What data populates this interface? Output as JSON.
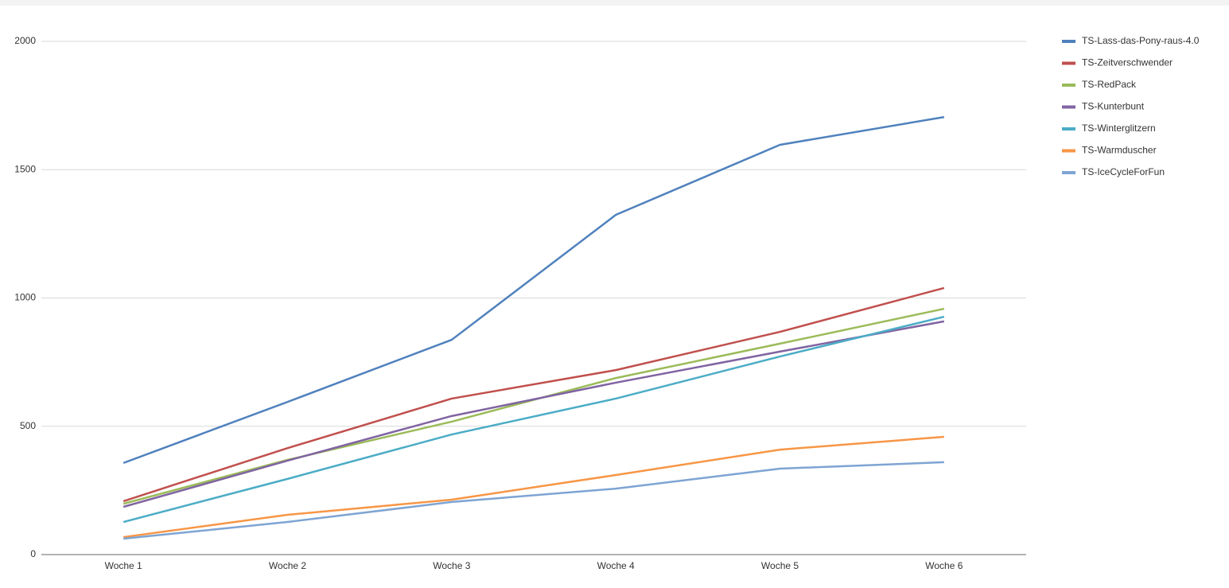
{
  "chart_data": {
    "type": "line",
    "categories": [
      "Woche 1",
      "Woche 2",
      "Woche 3",
      "Woche 4",
      "Woche 5",
      "Woche 6"
    ],
    "series": [
      {
        "name": "TS-Lass-das-Pony-raus-4.0",
        "color": "#4f81bd",
        "values": [
          357,
          595,
          837,
          1324,
          1597,
          1705
        ]
      },
      {
        "name": "TS-Zeitverschwender",
        "color": "#c0504d",
        "values": [
          208,
          415,
          608,
          719,
          868,
          1039
        ]
      },
      {
        "name": "TS-RedPack",
        "color": "#9bbb59",
        "values": [
          198,
          369,
          518,
          688,
          822,
          958
        ]
      },
      {
        "name": "TS-Kunterbunt",
        "color": "#8064a2",
        "values": [
          186,
          366,
          540,
          670,
          791,
          909
        ]
      },
      {
        "name": "TS-Winterglitzern",
        "color": "#4bacc6",
        "values": [
          127,
          295,
          468,
          608,
          772,
          927
        ]
      },
      {
        "name": "TS-Warmduscher",
        "color": "#f79646",
        "values": [
          68,
          155,
          214,
          310,
          409,
          459
        ]
      },
      {
        "name": "TS-IceCycleForFun",
        "color": "#7ea4d3",
        "values": [
          62,
          127,
          205,
          257,
          335,
          360
        ]
      }
    ],
    "ylim": [
      0,
      2000
    ],
    "yticks": [
      0,
      500,
      1000,
      1500,
      2000
    ],
    "grid": true,
    "legend": "right"
  }
}
